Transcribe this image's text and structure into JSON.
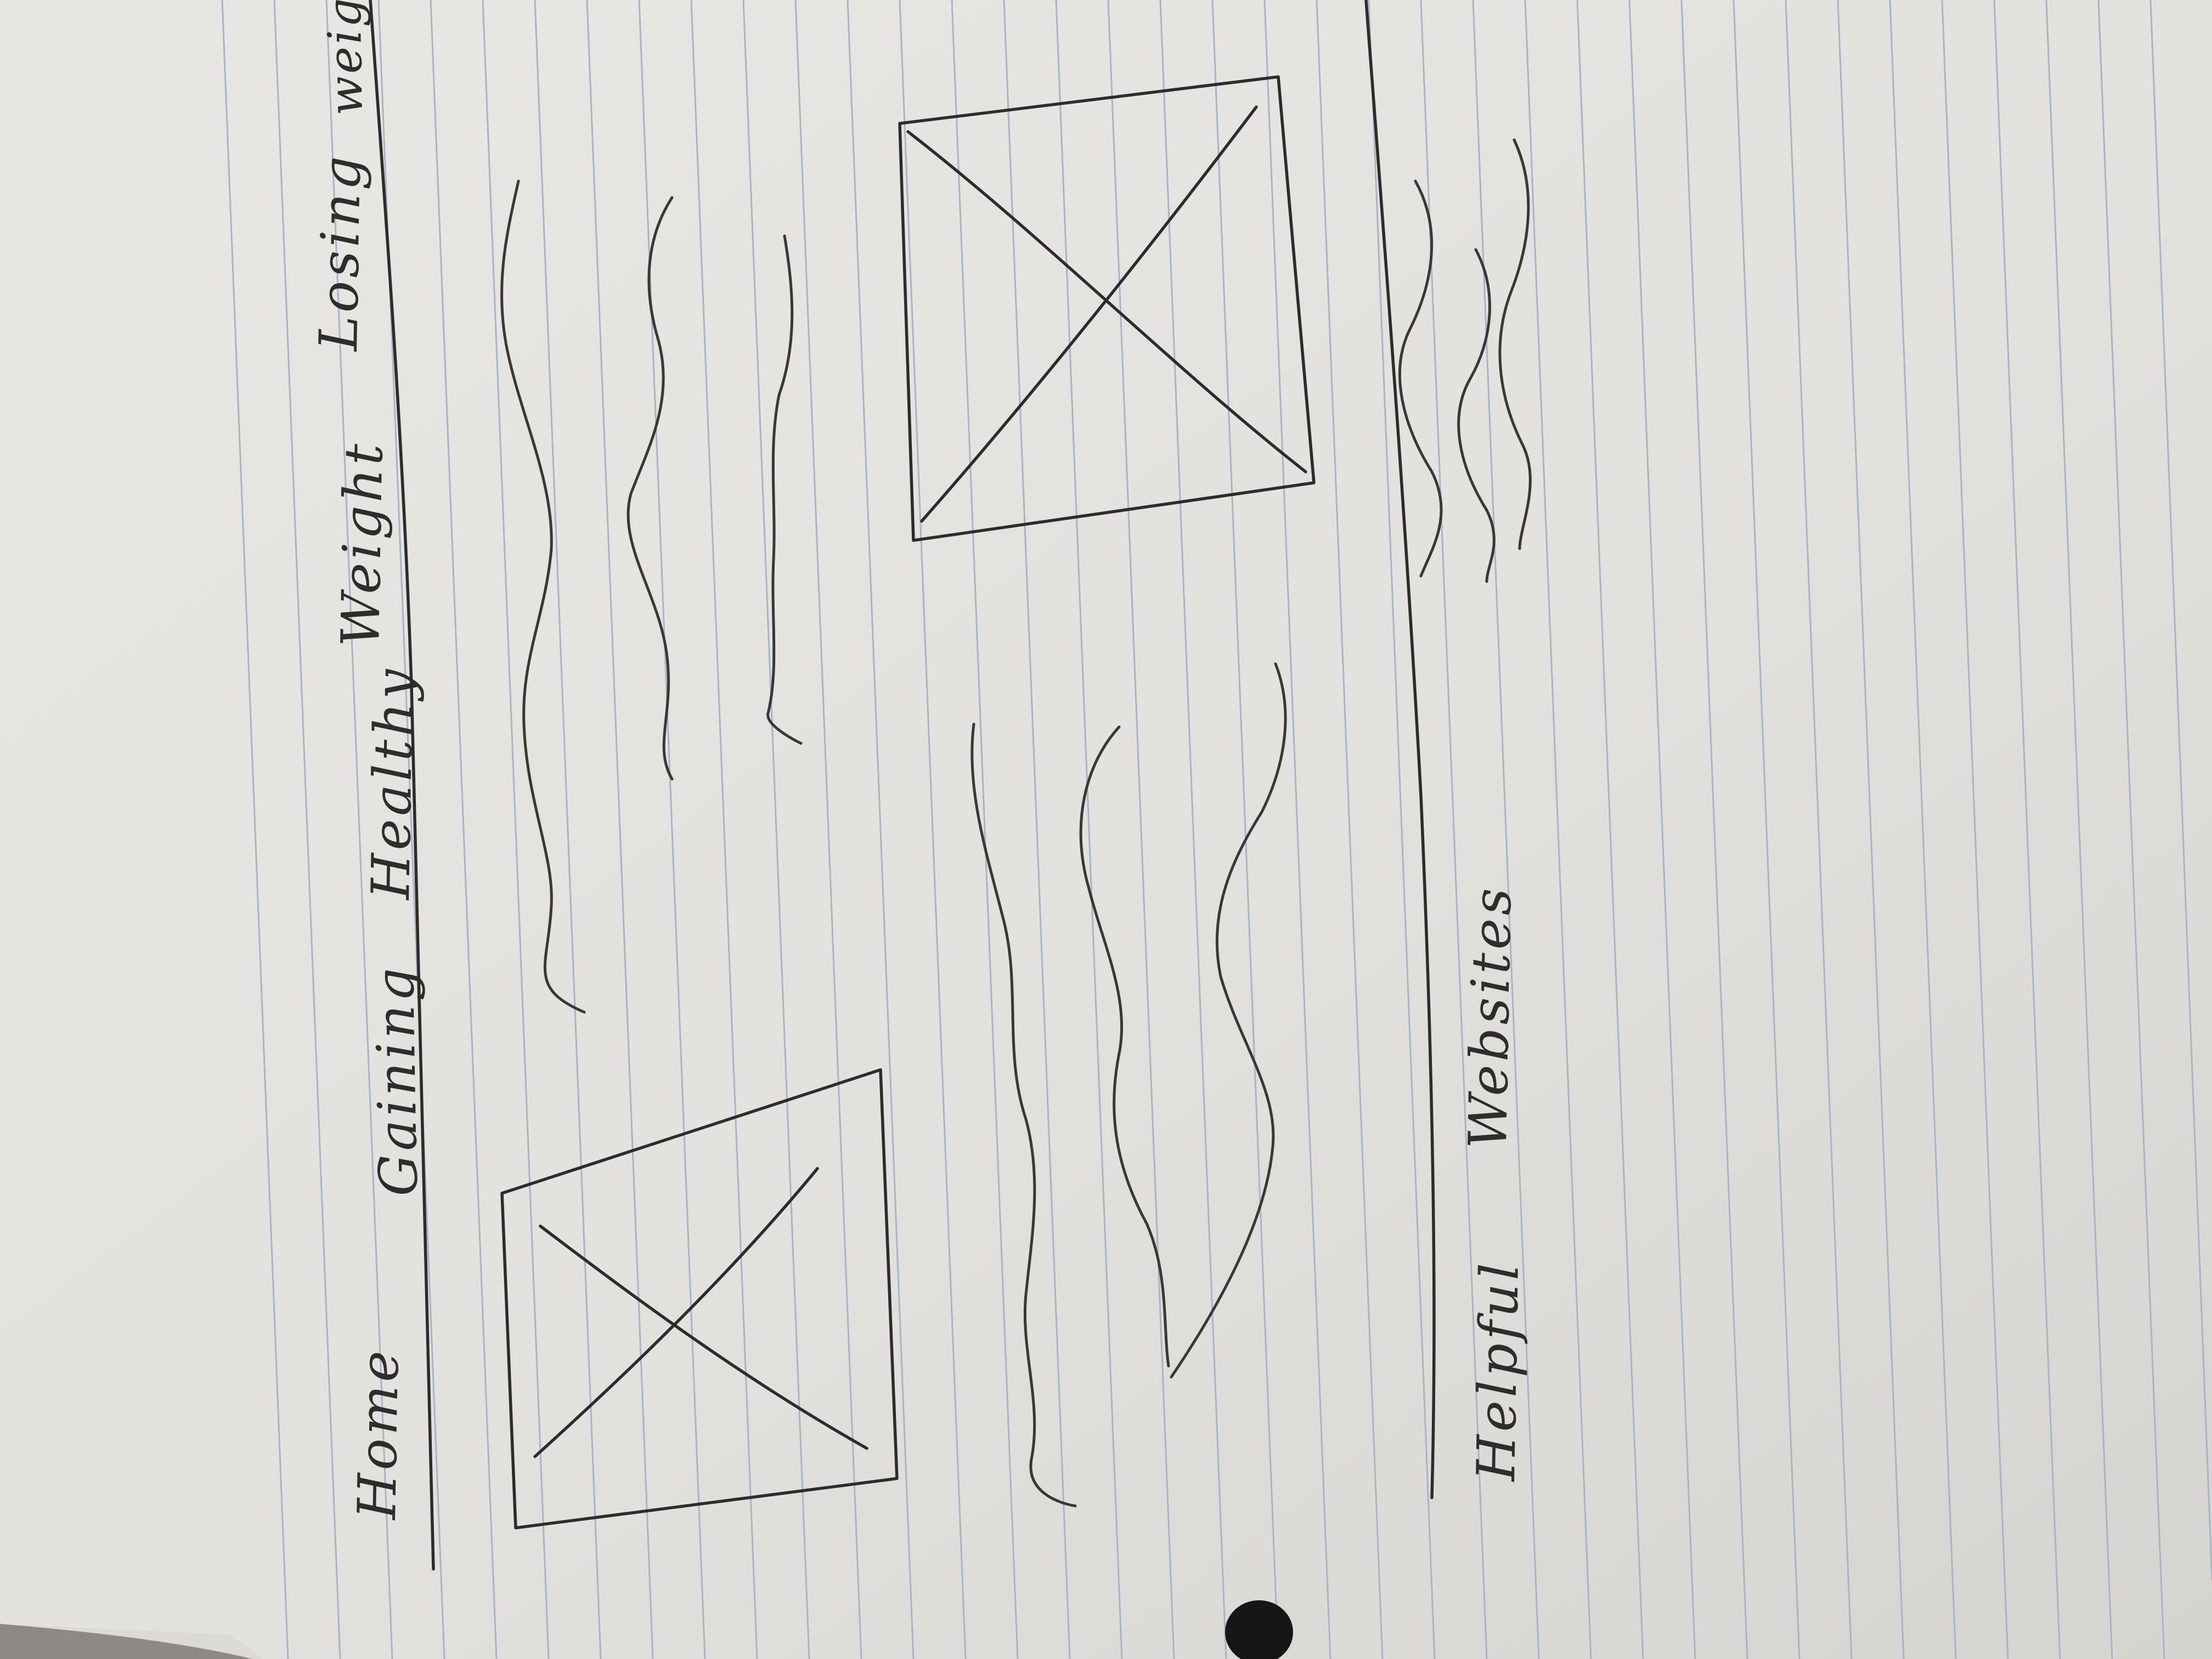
{
  "nav": {
    "items": [
      {
        "label": "Home"
      },
      {
        "label": "Gaining"
      },
      {
        "label": "Healthy"
      },
      {
        "label": "Weight"
      },
      {
        "label": "Losing"
      },
      {
        "label": "weight"
      }
    ]
  },
  "footer": {
    "items": [
      {
        "label": "Helpful"
      },
      {
        "label": "Websites"
      }
    ]
  },
  "colors": {
    "paper": "#e6e4e0",
    "ruled_line": "#a9b4c7",
    "ink": "#2d2b2b"
  },
  "icons": [
    "image-placeholder-icon",
    "image-placeholder-icon"
  ]
}
